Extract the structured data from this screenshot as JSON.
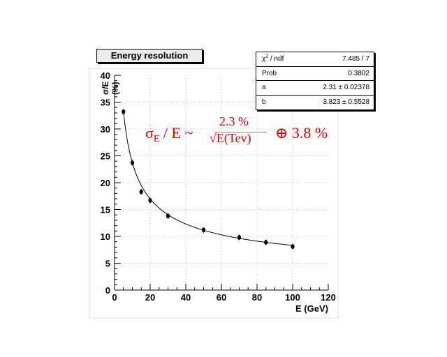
{
  "chart_data": {
    "type": "scatter",
    "title": "Energy resolution",
    "xlabel": "E (GeV)",
    "ylabel_unit": "(%)",
    "xlim": [
      0,
      120
    ],
    "ylim": [
      0,
      40
    ],
    "xticks": [
      0,
      20,
      40,
      60,
      80,
      100,
      120
    ],
    "yticks": [
      0,
      5,
      10,
      15,
      20,
      25,
      30,
      35,
      40
    ],
    "grid": true,
    "points": {
      "x": [
        5,
        10,
        15,
        20,
        30,
        50,
        70,
        85,
        100
      ],
      "y": [
        33.2,
        23.7,
        18.3,
        16.7,
        13.8,
        11.2,
        9.8,
        8.9,
        8.1
      ]
    },
    "fit": {
      "a": 2.31,
      "b": 3.823
    },
    "stats": [
      {
        "key": "χ² / ndf",
        "value": "7.485 / 7"
      },
      {
        "key": "Prob",
        "value": "0.3802"
      },
      {
        "key": "a",
        "value": "2.31 ± 0.02378"
      },
      {
        "key": "b",
        "value": "3.823 ± 0.5528"
      }
    ],
    "annotation": {
      "lhs_sigma": "σ",
      "lhs_sub": "E",
      "lhs_rest": " / E ~",
      "numerator": "2.3 %",
      "denominator": "√E(Tev)",
      "oplus": "⊕ 3.8 %"
    },
    "colors": {
      "annotation": "#e00000",
      "marker": "#000000",
      "grid": "#aaaaaa"
    }
  }
}
